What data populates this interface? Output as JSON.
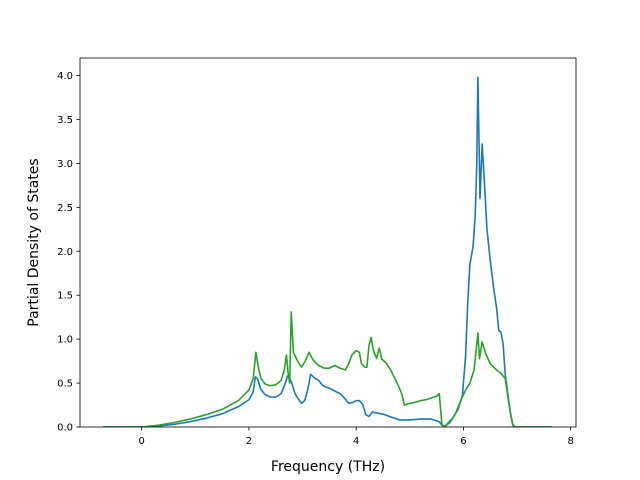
{
  "chart_data": {
    "type": "line",
    "xlabel": "Frequency (THz)",
    "ylabel": "Partial Density of States",
    "xlim": [
      -1.15,
      8.1
    ],
    "ylim": [
      0,
      4.2
    ],
    "xticks": [
      0,
      2,
      4,
      6,
      8
    ],
    "xtick_labels": [
      "0",
      "2",
      "4",
      "6",
      "8"
    ],
    "yticks": [
      0.0,
      0.5,
      1.0,
      1.5,
      2.0,
      2.5,
      3.0,
      3.5,
      4.0
    ],
    "ytick_labels": [
      "0.0",
      "0.5",
      "1.0",
      "1.5",
      "2.0",
      "2.5",
      "3.0",
      "3.5",
      "4.0"
    ],
    "grid": false,
    "series": [
      {
        "color": "#1f77b4",
        "points": [
          [
            -0.72,
            0
          ],
          [
            0,
            0
          ],
          [
            0.3,
            0.01
          ],
          [
            0.6,
            0.03
          ],
          [
            0.9,
            0.06
          ],
          [
            1.2,
            0.1
          ],
          [
            1.5,
            0.15
          ],
          [
            1.8,
            0.23
          ],
          [
            2.0,
            0.31
          ],
          [
            2.08,
            0.4
          ],
          [
            2.12,
            0.57
          ],
          [
            2.16,
            0.55
          ],
          [
            2.22,
            0.43
          ],
          [
            2.3,
            0.37
          ],
          [
            2.4,
            0.34
          ],
          [
            2.5,
            0.34
          ],
          [
            2.6,
            0.38
          ],
          [
            2.68,
            0.5
          ],
          [
            2.72,
            0.58
          ],
          [
            2.76,
            0.55
          ],
          [
            2.8,
            0.5
          ],
          [
            2.86,
            0.38
          ],
          [
            2.92,
            0.32
          ],
          [
            2.98,
            0.27
          ],
          [
            3.04,
            0.3
          ],
          [
            3.1,
            0.43
          ],
          [
            3.15,
            0.6
          ],
          [
            3.22,
            0.56
          ],
          [
            3.3,
            0.53
          ],
          [
            3.38,
            0.47
          ],
          [
            3.5,
            0.44
          ],
          [
            3.6,
            0.41
          ],
          [
            3.7,
            0.38
          ],
          [
            3.78,
            0.33
          ],
          [
            3.86,
            0.27
          ],
          [
            3.94,
            0.28
          ],
          [
            4.0,
            0.3
          ],
          [
            4.06,
            0.3
          ],
          [
            4.12,
            0.26
          ],
          [
            4.18,
            0.14
          ],
          [
            4.24,
            0.12
          ],
          [
            4.3,
            0.17
          ],
          [
            4.38,
            0.16
          ],
          [
            4.46,
            0.15
          ],
          [
            4.54,
            0.14
          ],
          [
            4.62,
            0.12
          ],
          [
            4.72,
            0.1
          ],
          [
            4.82,
            0.08
          ],
          [
            5.0,
            0.08
          ],
          [
            5.2,
            0.09
          ],
          [
            5.4,
            0.09
          ],
          [
            5.55,
            0.06
          ],
          [
            5.6,
            0.02
          ],
          [
            5.66,
            0.01
          ],
          [
            5.72,
            0.05
          ],
          [
            5.8,
            0.1
          ],
          [
            5.9,
            0.2
          ],
          [
            5.98,
            0.35
          ],
          [
            6.04,
            0.8
          ],
          [
            6.08,
            1.4
          ],
          [
            6.12,
            1.85
          ],
          [
            6.18,
            2.05
          ],
          [
            6.22,
            2.4
          ],
          [
            6.25,
            3.0
          ],
          [
            6.27,
            3.98
          ],
          [
            6.29,
            3.3
          ],
          [
            6.31,
            2.6
          ],
          [
            6.35,
            3.22
          ],
          [
            6.4,
            2.7
          ],
          [
            6.44,
            2.25
          ],
          [
            6.5,
            1.9
          ],
          [
            6.56,
            1.6
          ],
          [
            6.62,
            1.35
          ],
          [
            6.66,
            1.1
          ],
          [
            6.7,
            1.08
          ],
          [
            6.74,
            0.95
          ],
          [
            6.78,
            0.6
          ],
          [
            6.84,
            0.32
          ],
          [
            6.88,
            0.15
          ],
          [
            6.92,
            0.02
          ],
          [
            6.96,
            0
          ],
          [
            7.65,
            0
          ]
        ]
      },
      {
        "color": "#2ca02c",
        "points": [
          [
            -0.72,
            0
          ],
          [
            0,
            0
          ],
          [
            0.3,
            0.02
          ],
          [
            0.6,
            0.05
          ],
          [
            0.9,
            0.09
          ],
          [
            1.2,
            0.14
          ],
          [
            1.5,
            0.2
          ],
          [
            1.8,
            0.3
          ],
          [
            2.0,
            0.42
          ],
          [
            2.08,
            0.55
          ],
          [
            2.13,
            0.85
          ],
          [
            2.17,
            0.7
          ],
          [
            2.22,
            0.56
          ],
          [
            2.3,
            0.49
          ],
          [
            2.4,
            0.47
          ],
          [
            2.5,
            0.48
          ],
          [
            2.6,
            0.53
          ],
          [
            2.66,
            0.65
          ],
          [
            2.7,
            0.82
          ],
          [
            2.73,
            0.62
          ],
          [
            2.76,
            0.5
          ],
          [
            2.79,
            1.31
          ],
          [
            2.83,
            0.85
          ],
          [
            2.9,
            0.76
          ],
          [
            2.98,
            0.68
          ],
          [
            3.05,
            0.75
          ],
          [
            3.12,
            0.85
          ],
          [
            3.2,
            0.76
          ],
          [
            3.3,
            0.7
          ],
          [
            3.4,
            0.67
          ],
          [
            3.5,
            0.67
          ],
          [
            3.6,
            0.7
          ],
          [
            3.7,
            0.67
          ],
          [
            3.8,
            0.65
          ],
          [
            3.86,
            0.72
          ],
          [
            3.92,
            0.82
          ],
          [
            4.0,
            0.87
          ],
          [
            4.06,
            0.85
          ],
          [
            4.1,
            0.72
          ],
          [
            4.16,
            0.68
          ],
          [
            4.2,
            0.68
          ],
          [
            4.24,
            0.93
          ],
          [
            4.28,
            1.02
          ],
          [
            4.32,
            0.87
          ],
          [
            4.38,
            0.78
          ],
          [
            4.43,
            0.9
          ],
          [
            4.48,
            0.77
          ],
          [
            4.56,
            0.73
          ],
          [
            4.65,
            0.64
          ],
          [
            4.75,
            0.52
          ],
          [
            4.85,
            0.38
          ],
          [
            4.9,
            0.25
          ],
          [
            5.0,
            0.27
          ],
          [
            5.1,
            0.28
          ],
          [
            5.2,
            0.3
          ],
          [
            5.3,
            0.31
          ],
          [
            5.4,
            0.33
          ],
          [
            5.5,
            0.35
          ],
          [
            5.55,
            0.38
          ],
          [
            5.6,
            0.02
          ],
          [
            5.66,
            0.01
          ],
          [
            5.75,
            0.05
          ],
          [
            5.85,
            0.15
          ],
          [
            5.95,
            0.3
          ],
          [
            6.05,
            0.43
          ],
          [
            6.12,
            0.5
          ],
          [
            6.2,
            0.65
          ],
          [
            6.25,
            0.95
          ],
          [
            6.27,
            1.07
          ],
          [
            6.3,
            0.78
          ],
          [
            6.35,
            0.97
          ],
          [
            6.42,
            0.83
          ],
          [
            6.5,
            0.72
          ],
          [
            6.6,
            0.66
          ],
          [
            6.7,
            0.61
          ],
          [
            6.78,
            0.55
          ],
          [
            6.84,
            0.3
          ],
          [
            6.88,
            0.15
          ],
          [
            6.92,
            0.03
          ],
          [
            6.96,
            0
          ],
          [
            7.65,
            0
          ]
        ]
      }
    ]
  }
}
